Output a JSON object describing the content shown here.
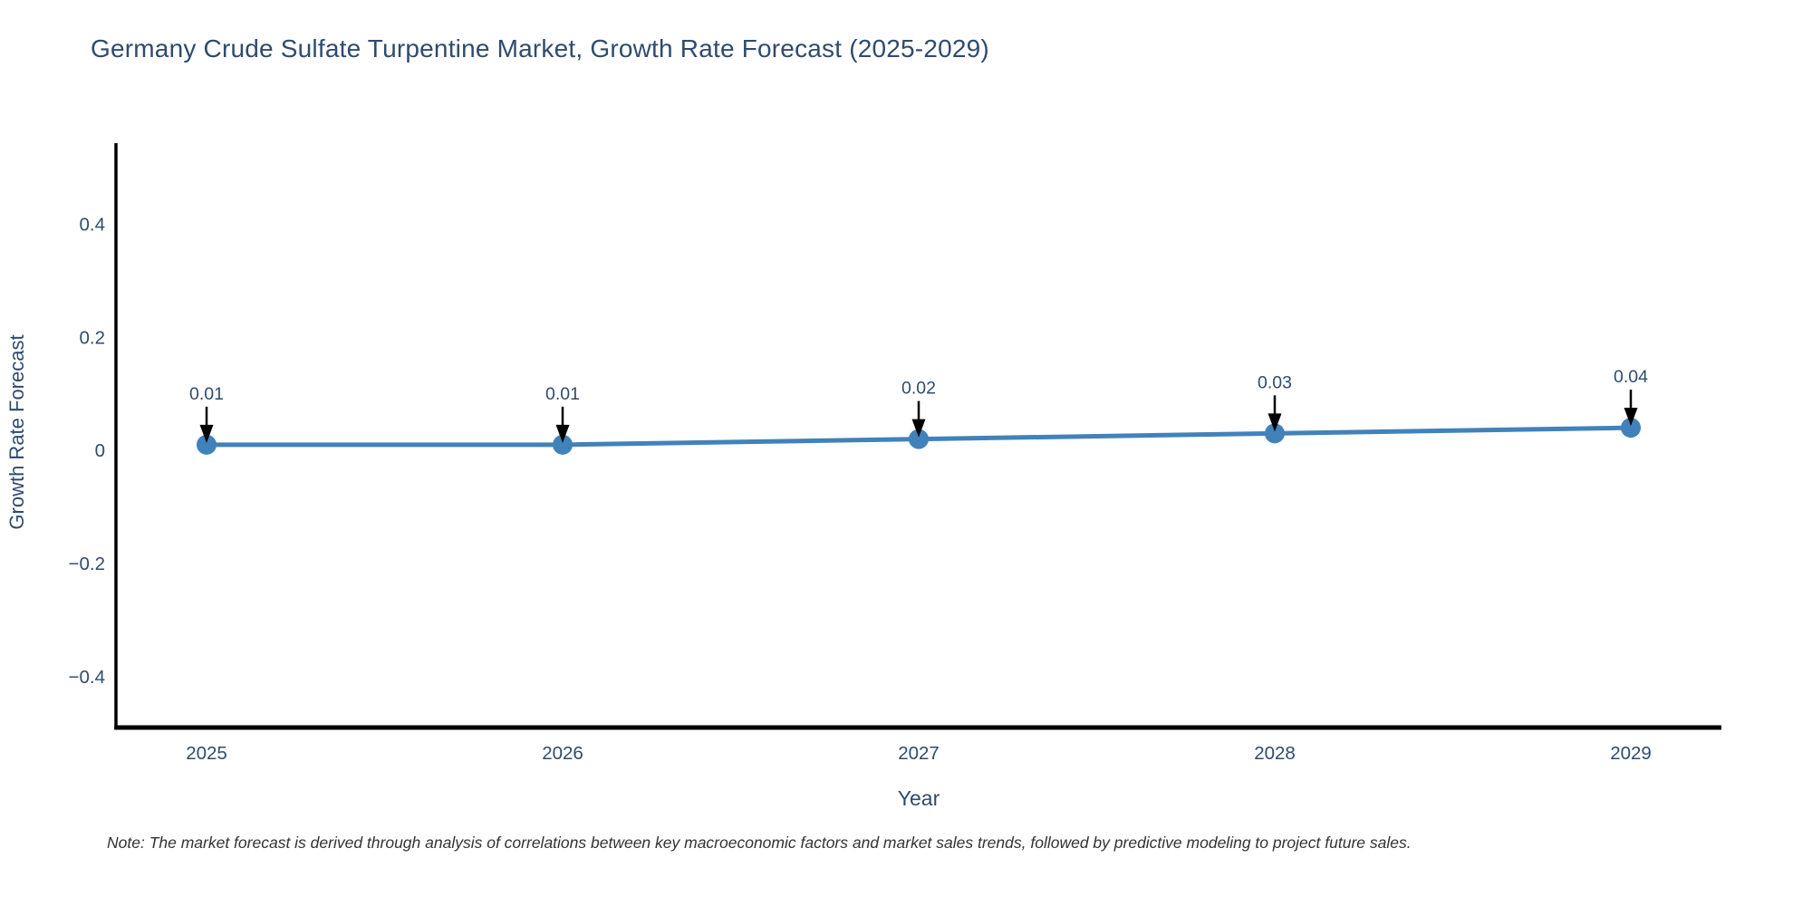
{
  "chart_data": {
    "type": "line",
    "title": "Germany Crude Sulfate Turpentine Market, Growth Rate Forecast (2025-2029)",
    "xlabel": "Year",
    "ylabel": "Growth Rate Forecast",
    "x": [
      2025,
      2026,
      2027,
      2028,
      2029
    ],
    "series": [
      {
        "name": "Growth Rate Forecast",
        "values": [
          0.01,
          0.01,
          0.02,
          0.03,
          0.04
        ]
      }
    ],
    "annotations": [
      "0.01",
      "0.01",
      "0.02",
      "0.03",
      "0.04"
    ],
    "xtick_labels": [
      "2025",
      "2026",
      "2027",
      "2028",
      "2029"
    ],
    "ytick_values": [
      -0.4,
      -0.2,
      0,
      0.2,
      0.4
    ],
    "ytick_labels": [
      "−0.4",
      "−0.2",
      "0",
      "0.2",
      "0.4"
    ],
    "ylim": [
      -0.49,
      0.54
    ],
    "xlim": [
      2025,
      2029
    ],
    "grid": false,
    "legend_position": "none",
    "colors": {
      "line": "#4182ba",
      "marker": "#4182ba",
      "axis": "#000000",
      "text": "#2f4b6e",
      "arrow": "#000000",
      "note": "#333333"
    }
  },
  "note": "Note: The market forecast is derived through analysis of correlations between key macroeconomic factors and market sales trends, followed by predictive modeling to project future sales."
}
